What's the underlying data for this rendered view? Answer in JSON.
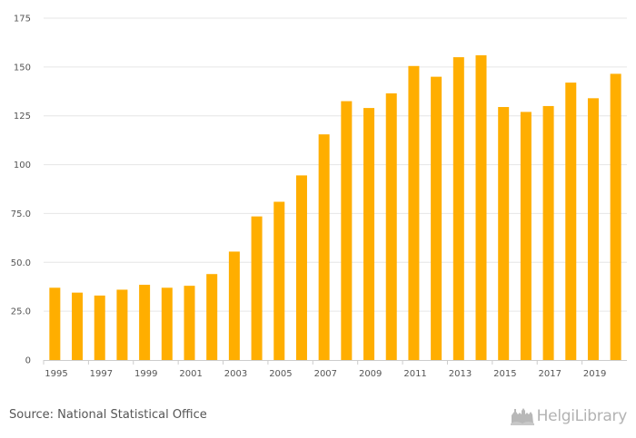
{
  "chart_data": {
    "type": "bar",
    "categories": [
      "1995",
      "1996",
      "1997",
      "1998",
      "1999",
      "2000",
      "2001",
      "2002",
      "2003",
      "2004",
      "2005",
      "2006",
      "2007",
      "2008",
      "2009",
      "2010",
      "2011",
      "2012",
      "2013",
      "2014",
      "2015",
      "2016",
      "2017",
      "2018",
      "2019",
      "2020"
    ],
    "x_tick_labels": [
      "1995",
      "1997",
      "1999",
      "2001",
      "2003",
      "2005",
      "2007",
      "2009",
      "2011",
      "2013",
      "2015",
      "2017",
      "2019"
    ],
    "values": [
      37.0,
      34.5,
      33.0,
      36.0,
      38.5,
      37.0,
      38.0,
      44.0,
      55.5,
      73.5,
      81.0,
      94.5,
      115.5,
      132.5,
      129.0,
      136.5,
      150.5,
      145.0,
      155.0,
      156.0,
      129.5,
      127.0,
      130.0,
      142.0,
      134.0,
      146.5
    ],
    "y_ticks": [
      0,
      25,
      50,
      75,
      100,
      125,
      150,
      175
    ],
    "y_tick_labels": [
      "0",
      "25.0",
      "50.0",
      "75.0",
      "100",
      "125",
      "150",
      "175"
    ],
    "ylim": [
      0,
      175
    ],
    "bar_color": "#ffae00",
    "grid": true,
    "title": "",
    "xlabel": "",
    "ylabel": ""
  },
  "footer": {
    "source": "Source: National Statistical Office",
    "logo_text": "HelgiLibrary",
    "logo_icon": "helgi-library-icon"
  }
}
